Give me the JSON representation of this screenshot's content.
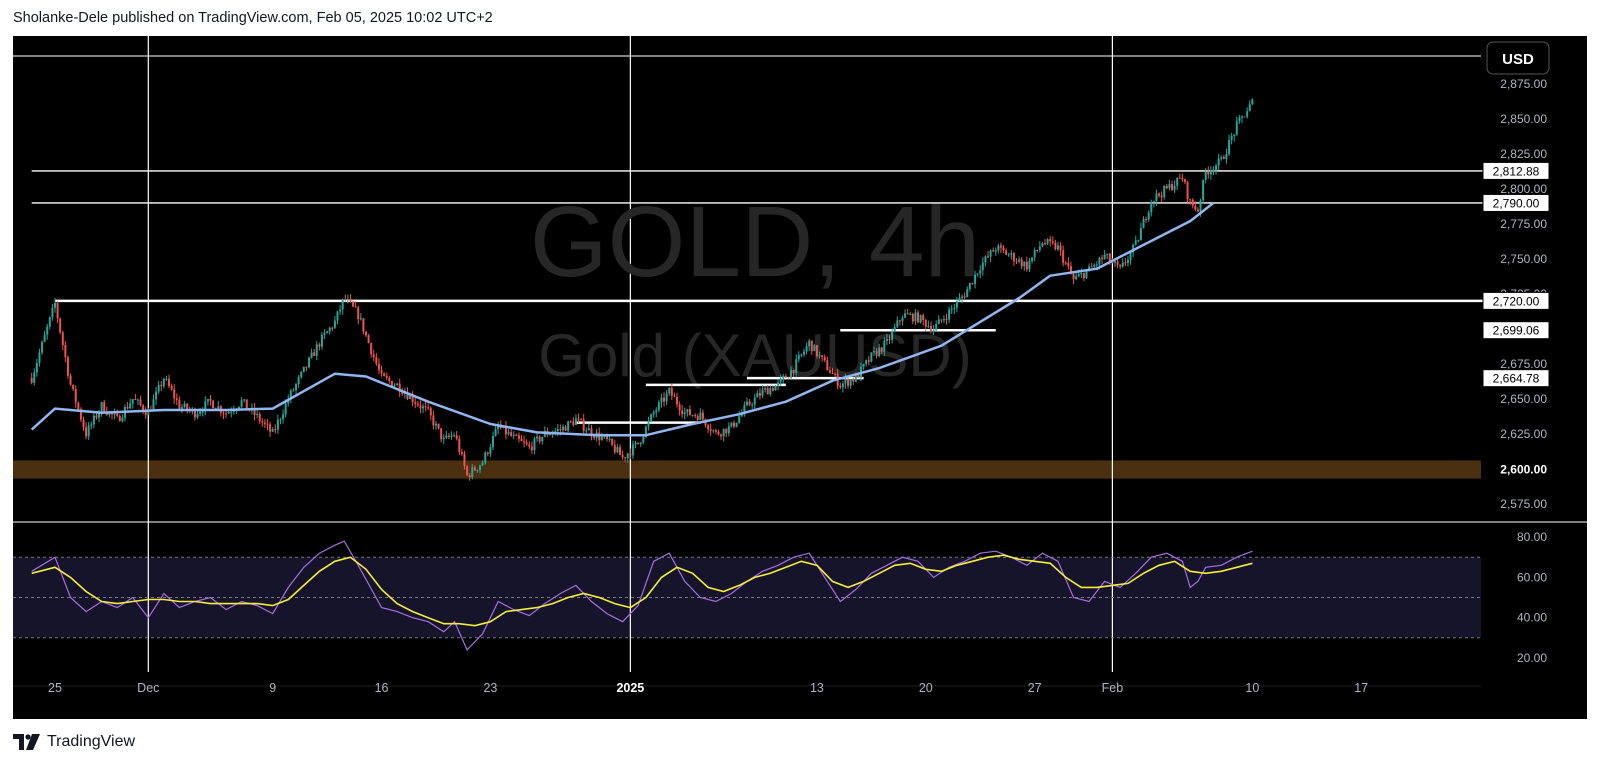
{
  "header": {
    "text": "Sholanke-Dele published on TradingView.com, Feb 05, 2025 10:02 UTC+2"
  },
  "footer": {
    "brand": "TradingView"
  },
  "watermark": {
    "symbol": "GOLD, 4h",
    "name": "Gold (XAUUSD)"
  },
  "currency_button": {
    "label": "USD"
  },
  "colors": {
    "background": "#000000",
    "grid": "#ffffff",
    "candle_up": "#26a69a",
    "candle_down": "#ef5350",
    "ma": "#90b6f0",
    "rsi": "#a56ee0",
    "rsi_ma": "#f3ee3c",
    "rsi_band": "#16142a",
    "zone": "#4a300e",
    "level": "#ffffff"
  },
  "chart_data": [
    {
      "type": "candlestick",
      "title": "GOLD, 4h",
      "subtitle": "Gold (XAUUSD)",
      "ylim": [
        2562,
        2895
      ],
      "y_ticks": [
        "2,875.00",
        "2,850.00",
        "2,825.00",
        "2,800.00",
        "2,775.00",
        "2,750.00",
        "2,725.00",
        "2,675.00",
        "2,650.00",
        "2,625.00",
        "2,575.00"
      ],
      "y_tick_values": [
        2875,
        2850,
        2825,
        2800,
        2775,
        2750,
        2725,
        2675,
        2650,
        2625,
        2575
      ],
      "price_labels": [
        {
          "text": "2,812.88",
          "value": 2812.88,
          "style": "boxed"
        },
        {
          "text": "2,790.00",
          "value": 2790,
          "style": "boxed"
        },
        {
          "text": "2,720.00",
          "value": 2720,
          "style": "boxed"
        },
        {
          "text": "2,699.06",
          "value": 2699.06,
          "style": "boxed"
        },
        {
          "text": "2,664.78",
          "value": 2664.78,
          "style": "boxed"
        },
        {
          "text": "2,600.00",
          "value": 2600,
          "style": "bold"
        }
      ],
      "x_ticks": [
        "25",
        "Dec",
        "9",
        "16",
        "23",
        "2025",
        "13",
        "20",
        "27",
        "Feb",
        "10",
        "17"
      ],
      "x_tick_days": [
        0,
        6,
        14,
        21,
        28,
        37,
        49,
        56,
        63,
        68,
        77,
        84
      ],
      "x_ticks_bold": [
        "2025"
      ],
      "vertical_gridlines_days": [
        6,
        37,
        68
      ],
      "horizontal_levels": [
        {
          "value": 2812.88,
          "x_from_day": -1.5,
          "x_to_day": 94
        },
        {
          "value": 2790,
          "x_from_day": -1.5,
          "x_to_day": 94
        },
        {
          "value": 2720,
          "x_from_day": 0,
          "x_to_day": 94
        }
      ],
      "segments": [
        {
          "value": 2699.06,
          "x_from_day": 50.5,
          "x_to_day": 60.5
        },
        {
          "value": 2664.78,
          "x_from_day": 44.5,
          "x_to_day": 52
        },
        {
          "value": 2660,
          "x_from_day": 38,
          "x_to_day": 47
        },
        {
          "value": 2633,
          "x_from_day": 33.5,
          "x_to_day": 41.5
        }
      ],
      "zone": {
        "from": 2593,
        "to": 2606
      },
      "moving_average_points": [
        [
          -1.5,
          2628
        ],
        [
          0,
          2643
        ],
        [
          3,
          2640
        ],
        [
          7,
          2642
        ],
        [
          11,
          2642
        ],
        [
          14,
          2643
        ],
        [
          18,
          2668
        ],
        [
          20,
          2666
        ],
        [
          24,
          2648
        ],
        [
          28,
          2632
        ],
        [
          31,
          2626
        ],
        [
          35,
          2624
        ],
        [
          38,
          2624
        ],
        [
          41,
          2632
        ],
        [
          44,
          2639
        ],
        [
          47,
          2648
        ],
        [
          50,
          2663
        ],
        [
          53,
          2672
        ],
        [
          57,
          2688
        ],
        [
          62,
          2722
        ],
        [
          64,
          2738
        ],
        [
          67,
          2743
        ],
        [
          70,
          2760
        ],
        [
          73,
          2777
        ],
        [
          74.5,
          2790
        ]
      ],
      "price_path_points": [
        [
          -1.5,
          2665
        ],
        [
          0,
          2718
        ],
        [
          1,
          2660
        ],
        [
          2,
          2625
        ],
        [
          3,
          2645
        ],
        [
          4,
          2635
        ],
        [
          5,
          2650
        ],
        [
          6,
          2640
        ],
        [
          7,
          2665
        ],
        [
          8,
          2645
        ],
        [
          9,
          2640
        ],
        [
          10,
          2648
        ],
        [
          11,
          2640
        ],
        [
          12,
          2648
        ],
        [
          13,
          2637
        ],
        [
          14,
          2625
        ],
        [
          15,
          2650
        ],
        [
          16,
          2670
        ],
        [
          17,
          2690
        ],
        [
          18,
          2705
        ],
        [
          18.6,
          2722
        ],
        [
          19.5,
          2710
        ],
        [
          20.5,
          2680
        ],
        [
          21,
          2665
        ],
        [
          22,
          2660
        ],
        [
          23,
          2650
        ],
        [
          24,
          2640
        ],
        [
          25,
          2620
        ],
        [
          25.7,
          2625
        ],
        [
          26.5,
          2595
        ],
        [
          27.5,
          2605
        ],
        [
          28.5,
          2630
        ],
        [
          29.5,
          2622
        ],
        [
          30.5,
          2615
        ],
        [
          31.5,
          2625
        ],
        [
          32.5,
          2628
        ],
        [
          33.5,
          2635
        ],
        [
          34.5,
          2626
        ],
        [
          35.5,
          2620
        ],
        [
          36.5,
          2608
        ],
        [
          37.5,
          2618
        ],
        [
          38.5,
          2640
        ],
        [
          39.5,
          2655
        ],
        [
          40.5,
          2640
        ],
        [
          41.5,
          2638
        ],
        [
          42.5,
          2625
        ],
        [
          43.5,
          2630
        ],
        [
          44.5,
          2645
        ],
        [
          45.5,
          2655
        ],
        [
          46.5,
          2660
        ],
        [
          47.5,
          2672
        ],
        [
          48.5,
          2690
        ],
        [
          49.5,
          2675
        ],
        [
          50.5,
          2660
        ],
        [
          51.5,
          2665
        ],
        [
          52.5,
          2680
        ],
        [
          53.5,
          2690
        ],
        [
          54.5,
          2710
        ],
        [
          55.5,
          2708
        ],
        [
          56.5,
          2700
        ],
        [
          57.5,
          2712
        ],
        [
          58.5,
          2725
        ],
        [
          59.5,
          2745
        ],
        [
          60.5,
          2758
        ],
        [
          61.5,
          2752
        ],
        [
          62.5,
          2745
        ],
        [
          63.5,
          2762
        ],
        [
          64.5,
          2758
        ],
        [
          65.5,
          2735
        ],
        [
          66.5,
          2742
        ],
        [
          67.5,
          2752
        ],
        [
          68.5,
          2742
        ],
        [
          69.5,
          2760
        ],
        [
          70.5,
          2792
        ],
        [
          71.5,
          2800
        ],
        [
          72.5,
          2808
        ],
        [
          73,
          2790
        ],
        [
          73.5,
          2785
        ],
        [
          74,
          2812
        ],
        [
          75,
          2820
        ],
        [
          76,
          2845
        ],
        [
          77,
          2862
        ]
      ]
    },
    {
      "type": "line",
      "title": "RSI",
      "ylim": [
        15,
        87
      ],
      "y_ticks": [
        "80.00",
        "60.00",
        "40.00",
        "20.00"
      ],
      "y_tick_values": [
        80,
        60,
        40,
        20
      ],
      "bands": [
        70,
        50,
        30
      ],
      "series": [
        {
          "key": "rsi",
          "points": [
            [
              -1.5,
              63
            ],
            [
              0,
              70
            ],
            [
              1,
              50
            ],
            [
              2,
              43
            ],
            [
              3,
              48
            ],
            [
              4,
              45
            ],
            [
              5,
              50
            ],
            [
              6,
              40
            ],
            [
              7,
              52
            ],
            [
              8,
              45
            ],
            [
              9,
              48
            ],
            [
              10,
              50
            ],
            [
              11,
              44
            ],
            [
              12,
              48
            ],
            [
              13,
              46
            ],
            [
              14,
              42
            ],
            [
              15,
              55
            ],
            [
              16,
              65
            ],
            [
              17,
              72
            ],
            [
              18,
              76
            ],
            [
              18.6,
              78
            ],
            [
              19.5,
              66
            ],
            [
              20.5,
              52
            ],
            [
              21,
              45
            ],
            [
              22,
              43
            ],
            [
              23,
              40
            ],
            [
              24,
              38
            ],
            [
              25,
              33
            ],
            [
              25.7,
              38
            ],
            [
              26.5,
              24
            ],
            [
              27.5,
              32
            ],
            [
              28.5,
              48
            ],
            [
              29.5,
              44
            ],
            [
              30.5,
              41
            ],
            [
              31.5,
              47
            ],
            [
              32.5,
              52
            ],
            [
              33.5,
              56
            ],
            [
              34.5,
              48
            ],
            [
              35.5,
              42
            ],
            [
              36.5,
              38
            ],
            [
              37.5,
              46
            ],
            [
              38.5,
              68
            ],
            [
              39.5,
              72
            ],
            [
              40.5,
              58
            ],
            [
              41.5,
              50
            ],
            [
              42.5,
              48
            ],
            [
              43.5,
              52
            ],
            [
              44.5,
              58
            ],
            [
              45.5,
              63
            ],
            [
              46.5,
              66
            ],
            [
              47.5,
              70
            ],
            [
              48.5,
              72
            ],
            [
              49.5,
              60
            ],
            [
              50.5,
              48
            ],
            [
              51.5,
              54
            ],
            [
              52.5,
              62
            ],
            [
              53.5,
              66
            ],
            [
              54.5,
              70
            ],
            [
              55.5,
              68
            ],
            [
              56.5,
              60
            ],
            [
              57.5,
              65
            ],
            [
              58.5,
              68
            ],
            [
              59.5,
              72
            ],
            [
              60.5,
              73
            ],
            [
              61.5,
              70
            ],
            [
              62.5,
              66
            ],
            [
              63.5,
              72
            ],
            [
              64.5,
              68
            ],
            [
              65.5,
              50
            ],
            [
              66.5,
              48
            ],
            [
              67.5,
              58
            ],
            [
              68.5,
              55
            ],
            [
              69.5,
              62
            ],
            [
              70.5,
              70
            ],
            [
              71.5,
              72
            ],
            [
              72.5,
              68
            ],
            [
              73,
              55
            ],
            [
              73.5,
              58
            ],
            [
              74,
              65
            ],
            [
              75,
              66
            ],
            [
              76,
              70
            ],
            [
              77,
              73
            ]
          ]
        },
        {
          "key": "rsi_ma",
          "points": [
            [
              -1.5,
              62
            ],
            [
              0,
              65
            ],
            [
              1,
              60
            ],
            [
              2,
              53
            ],
            [
              3,
              48
            ],
            [
              4,
              47
            ],
            [
              5,
              48
            ],
            [
              6,
              49
            ],
            [
              7,
              49
            ],
            [
              8,
              48
            ],
            [
              9,
              48
            ],
            [
              10,
              47
            ],
            [
              11,
              47
            ],
            [
              12,
              47
            ],
            [
              13,
              47
            ],
            [
              14,
              46
            ],
            [
              15,
              49
            ],
            [
              16,
              56
            ],
            [
              17,
              63
            ],
            [
              18,
              68
            ],
            [
              19,
              70
            ],
            [
              20,
              64
            ],
            [
              21,
              54
            ],
            [
              22,
              47
            ],
            [
              23,
              43
            ],
            [
              24,
              40
            ],
            [
              25,
              37
            ],
            [
              26,
              37
            ],
            [
              27,
              36
            ],
            [
              28,
              38
            ],
            [
              29,
              43
            ],
            [
              30,
              44
            ],
            [
              31,
              45
            ],
            [
              32,
              47
            ],
            [
              33,
              50
            ],
            [
              34,
              52
            ],
            [
              35,
              50
            ],
            [
              36,
              47
            ],
            [
              37,
              45
            ],
            [
              38,
              50
            ],
            [
              39,
              60
            ],
            [
              40,
              65
            ],
            [
              41,
              62
            ],
            [
              42,
              55
            ],
            [
              43,
              53
            ],
            [
              44,
              56
            ],
            [
              45,
              60
            ],
            [
              46,
              62
            ],
            [
              47,
              65
            ],
            [
              48,
              68
            ],
            [
              49,
              66
            ],
            [
              50,
              58
            ],
            [
              51,
              55
            ],
            [
              52,
              58
            ],
            [
              53,
              62
            ],
            [
              54,
              66
            ],
            [
              55,
              67
            ],
            [
              56,
              64
            ],
            [
              57,
              63
            ],
            [
              58,
              66
            ],
            [
              59,
              68
            ],
            [
              60,
              70
            ],
            [
              61,
              71
            ],
            [
              62,
              69
            ],
            [
              63,
              68
            ],
            [
              64,
              67
            ],
            [
              65,
              60
            ],
            [
              66,
              55
            ],
            [
              67,
              55
            ],
            [
              68,
              56
            ],
            [
              69,
              57
            ],
            [
              70,
              62
            ],
            [
              71,
              66
            ],
            [
              72,
              68
            ],
            [
              73,
              63
            ],
            [
              74,
              62
            ],
            [
              75,
              63
            ],
            [
              76,
              65
            ],
            [
              77,
              67
            ]
          ]
        }
      ]
    }
  ]
}
